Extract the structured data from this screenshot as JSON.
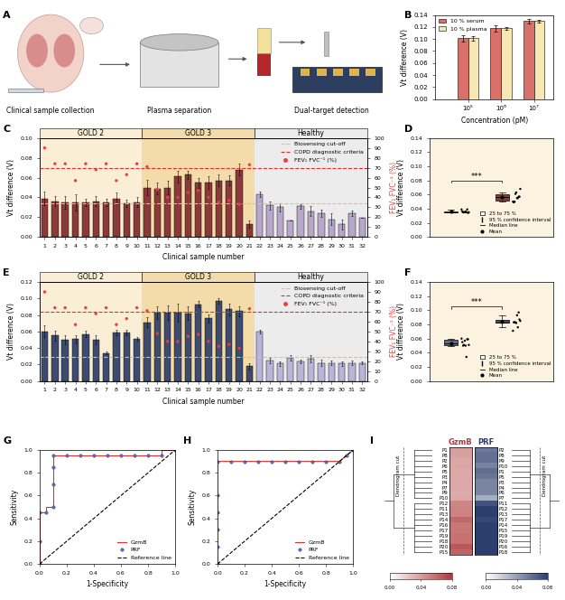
{
  "chart_data": [
    {
      "panel": "A",
      "type": "diagram",
      "labels": [
        "Clinical sample collection",
        "Plasma separation",
        "Dual-target detection"
      ]
    },
    {
      "panel": "B",
      "type": "bar",
      "x_label": "Concentration (pM)",
      "y_label": "Vt difference (V)",
      "categories": [
        "10⁵",
        "10⁶",
        "10⁷"
      ],
      "series": [
        {
          "name": "10 % serum",
          "color": "#d9706a",
          "values": [
            0.101,
            0.118,
            0.13
          ],
          "errors": [
            0.006,
            0.005,
            0.004
          ]
        },
        {
          "name": "10 % plasma",
          "color": "#f6e7b4",
          "values": [
            0.101,
            0.118,
            0.13
          ],
          "errors": [
            0.004,
            0.002,
            0.002
          ]
        }
      ],
      "ylim": [
        0,
        0.14
      ],
      "yticks": [
        {
          "value": 0,
          "label": "0.00"
        },
        {
          "value": 0.02,
          "label": "0.02"
        },
        {
          "value": 0.04,
          "label": "0.04"
        },
        {
          "value": 0.06,
          "label": "0.06"
        },
        {
          "value": 0.08,
          "label": "0.08"
        },
        {
          "value": 0.1,
          "label": "0.10"
        },
        {
          "value": 0.12,
          "label": "0.12"
        },
        {
          "value": 0.14,
          "label": "0.14"
        }
      ],
      "legend": "upper left"
    },
    {
      "panel": "C",
      "type": "bar",
      "x_label": "Clinical sample number",
      "y_label": "Vt difference (V)",
      "y2_label": "FEV₁ FVC⁻¹ (%)",
      "categories": [
        "1",
        "2",
        "3",
        "4",
        "5",
        "6",
        "7",
        "8",
        "9",
        "10",
        "11",
        "12",
        "13",
        "14",
        "15",
        "16",
        "17",
        "18",
        "19",
        "20",
        "21",
        "22",
        "23",
        "24",
        "25",
        "26",
        "27",
        "28",
        "29",
        "30",
        "31",
        "32"
      ],
      "groups": [
        {
          "name": "GOLD 2",
          "start": "1",
          "end": "10",
          "color": "#8b3a3a"
        },
        {
          "name": "GOLD 3",
          "start": "11",
          "end": "21",
          "color": "#8b3a3a"
        },
        {
          "name": "Healthy",
          "start": "22",
          "end": "32",
          "color": "#b9a7c9"
        }
      ],
      "values": [
        0.039,
        0.036,
        0.035,
        0.035,
        0.035,
        0.036,
        0.035,
        0.039,
        0.034,
        0.035,
        0.05,
        0.049,
        0.05,
        0.061,
        0.063,
        0.055,
        0.055,
        0.057,
        0.057,
        0.068,
        0.013,
        0.043,
        0.032,
        0.03,
        0.017,
        0.031,
        0.026,
        0.024,
        0.018,
        0.013,
        0.024,
        0.019
      ],
      "errors": [
        0.007,
        0.005,
        0.006,
        0.008,
        0.004,
        0.005,
        0.004,
        0.006,
        0.004,
        0.005,
        0.008,
        0.006,
        0.007,
        0.006,
        0.004,
        0.005,
        0.006,
        0.006,
        0.005,
        0.006,
        0.004,
        0.003,
        0.004,
        0.004,
        0,
        0.002,
        0.005,
        0.004,
        0.006,
        0.005,
        0.003,
        0
      ],
      "cutoff": {
        "name": "Biosensing cut-off",
        "value": 0.034,
        "color": "#f0c050"
      },
      "criteria": {
        "name": "COPD diagnostic criteria",
        "value": 70,
        "axis": "y2",
        "color": "#e03030"
      },
      "series": [
        {
          "name": "FEV₁ FVC⁻¹ (%)",
          "type": "scatter",
          "axis": "y2",
          "color": "#e84040",
          "values": [
            90,
            74,
            74,
            57,
            74,
            68,
            74,
            57,
            63,
            74,
            71,
            48,
            40,
            40,
            45,
            47,
            40,
            35,
            37,
            33,
            73,
            null,
            null,
            null,
            null,
            null,
            null,
            null,
            null,
            null,
            null,
            null
          ]
        }
      ],
      "ylim": [
        0,
        0.1
      ],
      "yticks": [
        {
          "value": 0,
          "label": "0.00"
        },
        {
          "value": 0.02,
          "label": "0.02"
        },
        {
          "value": 0.04,
          "label": "0.04"
        },
        {
          "value": 0.06,
          "label": "0.06"
        },
        {
          "value": 0.08,
          "label": "0.08"
        },
        {
          "value": 0.1,
          "label": "0.10"
        }
      ],
      "y2lim": [
        0,
        100
      ],
      "y2ticks": [
        0,
        10,
        20,
        30,
        40,
        50,
        60,
        70,
        80,
        90,
        100
      ],
      "legend": "upper right"
    },
    {
      "panel": "D",
      "type": "box",
      "y_label": "Vt difference (V)",
      "groups": [
        {
          "color": "#a0705e",
          "values": [
            0.039,
            0.036,
            0.035,
            0.035,
            0.035,
            0.036,
            0.035,
            0.039,
            0.034,
            0.035
          ]
        },
        {
          "color": "#8b3a3a",
          "values": [
            0.05,
            0.049,
            0.05,
            0.061,
            0.063,
            0.055,
            0.055,
            0.057,
            0.057,
            0.068
          ]
        }
      ],
      "annotation": {
        "text": "***",
        "y": 0.08
      },
      "legend_entries": [
        "25 to 75 %",
        "95 % confidence interval",
        "Median line",
        "Mean"
      ],
      "legend": "lower right",
      "tick_labels": "y",
      "ylim": [
        0,
        0.14
      ],
      "yticks": [
        {
          "value": 0,
          "label": "0.00"
        },
        {
          "value": 0.02,
          "label": "0.02"
        },
        {
          "value": 0.04,
          "label": "0.04"
        },
        {
          "value": 0.06,
          "label": "0.06"
        },
        {
          "value": 0.08,
          "label": "0.08"
        },
        {
          "value": 0.1,
          "label": "0.10"
        },
        {
          "value": 0.12,
          "label": "0.12"
        },
        {
          "value": 0.14,
          "label": "0.14"
        }
      ]
    },
    {
      "panel": "E",
      "type": "bar",
      "x_label": "Clinical sample number",
      "y_label": "Vt difference (V)",
      "y2_label": "FEV₁ FVC⁻¹ (%)",
      "categories": [
        "1",
        "2",
        "3",
        "4",
        "5",
        "6",
        "7",
        "8",
        "9",
        "10",
        "11",
        "12",
        "13",
        "14",
        "15",
        "16",
        "17",
        "18",
        "19",
        "20",
        "21",
        "22",
        "23",
        "24",
        "25",
        "26",
        "27",
        "28",
        "29",
        "30",
        "31",
        "32"
      ],
      "groups": [
        {
          "name": "GOLD 2",
          "start": "1",
          "end": "10",
          "color": "#3d4b6e"
        },
        {
          "name": "GOLD 3",
          "start": "11",
          "end": "21",
          "color": "#3d4b6e"
        },
        {
          "name": "Healthy",
          "start": "22",
          "end": "32",
          "color": "#b9b4d8"
        }
      ],
      "values": [
        0.06,
        0.055,
        0.05,
        0.051,
        0.057,
        0.05,
        0.034,
        0.059,
        0.059,
        0.051,
        0.071,
        0.083,
        0.083,
        0.083,
        0.082,
        0.093,
        0.076,
        0.097,
        0.087,
        0.085,
        0.018,
        0.06,
        0.025,
        0.021,
        0.028,
        0.024,
        0.027,
        0.022,
        0.022,
        0.021,
        0.022,
        0.022
      ],
      "errors": [
        0.007,
        0.006,
        0.005,
        0.005,
        0.004,
        0.006,
        0.002,
        0.003,
        0.003,
        0.002,
        0.006,
        0.008,
        0.009,
        0.011,
        0.008,
        0.004,
        0.005,
        0.003,
        0.007,
        0.006,
        0.004,
        0.002,
        0.003,
        0.003,
        0.003,
        0.002,
        0.004,
        0.004,
        0.003,
        0.003,
        0.003,
        0.002
      ],
      "cutoff": {
        "name": "Biosensing cut-off",
        "value": 0.029,
        "color": "#f0c050"
      },
      "criteria": {
        "name": "COPD diagnostic criteria",
        "value": 70,
        "axis": "y2",
        "color": "#e03030"
      },
      "series": [
        {
          "name": "FEV₁ FVC⁻¹ (%)",
          "type": "scatter",
          "axis": "y2",
          "color": "#e84040",
          "values": [
            90,
            74,
            74,
            57,
            74,
            68,
            74,
            57,
            63,
            74,
            71,
            48,
            40,
            40,
            45,
            47,
            40,
            35,
            37,
            33,
            73,
            null,
            null,
            null,
            null,
            null,
            null,
            null,
            null,
            null,
            null,
            null
          ]
        }
      ],
      "ylim": [
        0,
        0.12
      ],
      "yticks": [
        {
          "value": 0,
          "label": "0.00"
        },
        {
          "value": 0.02,
          "label": "0.02"
        },
        {
          "value": 0.04,
          "label": "0.04"
        },
        {
          "value": 0.06,
          "label": "0.06"
        },
        {
          "value": 0.08,
          "label": "0.08"
        },
        {
          "value": 0.1,
          "label": "0.10"
        },
        {
          "value": 0.12,
          "label": "0.12"
        }
      ],
      "y2lim": [
        0,
        100
      ],
      "y2ticks": [
        0,
        10,
        20,
        30,
        40,
        50,
        60,
        70,
        80,
        90,
        100
      ],
      "legend": "upper right"
    },
    {
      "panel": "F",
      "type": "box",
      "y_label": "Vt difference (V)",
      "groups": [
        {
          "color": "#5a6a90",
          "values": [
            0.06,
            0.055,
            0.05,
            0.051,
            0.057,
            0.05,
            0.034,
            0.059,
            0.059,
            0.051
          ]
        },
        {
          "color": "#3d4b6e",
          "values": [
            0.071,
            0.083,
            0.083,
            0.083,
            0.082,
            0.093,
            0.076,
            0.097,
            0.087,
            0.085
          ]
        }
      ],
      "annotation": {
        "text": "***",
        "y": 0.105
      },
      "legend_entries": [
        "25 to 75 %",
        "95 % confidence interval",
        "Median line",
        "Mean"
      ],
      "legend": "lower right",
      "tick_labels": "y",
      "ylim": [
        0,
        0.14
      ],
      "yticks": [
        {
          "value": 0,
          "label": "0.00"
        },
        {
          "value": 0.02,
          "label": "0.02"
        },
        {
          "value": 0.04,
          "label": "0.04"
        },
        {
          "value": 0.06,
          "label": "0.06"
        },
        {
          "value": 0.08,
          "label": "0.08"
        },
        {
          "value": 0.1,
          "label": "0.10"
        },
        {
          "value": 0.12,
          "label": "0.12"
        },
        {
          "value": 0.14,
          "label": "0.14"
        }
      ]
    },
    {
      "panel": "G",
      "type": "line",
      "x_label": "1-Specificity",
      "y_label": "Sensitivity",
      "series": [
        {
          "name": "GzmB",
          "color": "#e03030",
          "line_style": "solid",
          "x": [
            0,
            0,
            0.05,
            0.05,
            0.1,
            0.1,
            0.9,
            0.9,
            1.0
          ],
          "values": [
            0,
            0.45,
            0.45,
            0.5,
            0.5,
            0.95,
            0.95,
            1.0,
            1.0
          ]
        },
        {
          "name": "PRF",
          "color": "#5b6fb0",
          "marker": "o",
          "line_style": "none",
          "x": [
            0,
            0,
            0,
            0.05,
            0.1,
            0.1,
            0.1,
            0.1,
            0.2,
            0.3,
            0.4,
            0.5,
            0.6,
            0.7,
            0.8,
            0.9,
            1.0
          ],
          "values": [
            0,
            0.2,
            0.45,
            0.45,
            0.5,
            0.7,
            0.85,
            0.95,
            0.95,
            0.95,
            0.95,
            0.95,
            0.95,
            0.95,
            0.95,
            0.95,
            1.0
          ]
        },
        {
          "name": "Reference line",
          "color": "#000000",
          "line_style": "dashed",
          "x": [
            0,
            1.0
          ],
          "values": [
            0,
            1.0
          ]
        }
      ],
      "xlim": [
        0,
        1.0
      ],
      "ylim": [
        0,
        1.0
      ],
      "xticks": [
        0.0,
        0.2,
        0.4,
        0.6,
        0.8,
        1.0
      ],
      "yticks": [
        0.0,
        0.2,
        0.4,
        0.6,
        0.8,
        1.0
      ],
      "legend": "lower right"
    },
    {
      "panel": "H",
      "type": "line",
      "x_label": "1-Specificity",
      "y_label": "Sensitivity",
      "series": [
        {
          "name": "GzmB",
          "color": "#e03030",
          "line_style": "solid",
          "x": [
            0,
            0,
            0.9,
            1.0
          ],
          "values": [
            0,
            0.9,
            0.9,
            1.0
          ]
        },
        {
          "name": "PRF",
          "color": "#5b6fb0",
          "marker": "o",
          "line_style": "none",
          "x": [
            0,
            0,
            0,
            0,
            0,
            0,
            0.1,
            0.2,
            0.3,
            0.4,
            0.5,
            0.6,
            0.7,
            0.8,
            0.9,
            0.95,
            1.0
          ],
          "values": [
            0,
            0.15,
            0.3,
            0.45,
            0.6,
            0.9,
            0.9,
            0.9,
            0.9,
            0.9,
            0.9,
            0.9,
            0.9,
            0.9,
            0.9,
            0.95,
            1.0
          ]
        },
        {
          "name": "Reference line",
          "color": "#000000",
          "line_style": "dashed",
          "x": [
            0,
            1.0
          ],
          "values": [
            0,
            1.0
          ]
        }
      ],
      "xlim": [
        0,
        1.0
      ],
      "ylim": [
        0,
        1.0
      ],
      "xticks": [
        0.0,
        0.2,
        0.4,
        0.6,
        0.8,
        1.0
      ],
      "yticks": [
        0.0,
        0.2,
        0.4,
        0.6,
        0.8,
        1.0
      ],
      "legend": "lower right"
    },
    {
      "panel": "I",
      "type": "heatmap",
      "annotation": "Dendrogram cut",
      "columns": [
        {
          "name": "GzmB",
          "color": "#b03a3a",
          "rows": [
            "P1",
            "P8",
            "P2",
            "P6",
            "P5",
            "P3",
            "P4",
            "P7",
            "P9",
            "P10",
            "P12",
            "P11",
            "P13",
            "P14",
            "P16",
            "P17",
            "P19",
            "P18",
            "P20",
            "P15"
          ],
          "values": [
            0.039,
            0.039,
            0.036,
            0.036,
            0.035,
            0.035,
            0.035,
            0.035,
            0.034,
            0.035,
            0.049,
            0.05,
            0.05,
            0.061,
            0.055,
            0.055,
            0.057,
            0.057,
            0.068,
            0.063
          ]
        },
        {
          "name": "PRF",
          "color": "#2c3e6e",
          "rows": [
            "P2",
            "P8",
            "P9",
            "P10",
            "P1",
            "P5",
            "P3",
            "P4",
            "P6",
            "P7",
            "P11",
            "P12",
            "P13",
            "P17",
            "P14",
            "P15",
            "P19",
            "P20",
            "P16",
            "P18"
          ],
          "values": [
            0.055,
            0.059,
            0.059,
            0.051,
            0.06,
            0.057,
            0.05,
            0.051,
            0.05,
            0.034,
            0.071,
            0.083,
            0.083,
            0.076,
            0.083,
            0.082,
            0.087,
            0.085,
            0.093,
            0.097
          ]
        }
      ],
      "colorbar_range": [
        0,
        0.08
      ],
      "colorbar_ticks": [
        {
          "value": 0,
          "label": "0.00"
        },
        {
          "value": 0.04,
          "label": "0.04"
        },
        {
          "value": 0.08,
          "label": "0.08"
        }
      ]
    }
  ]
}
